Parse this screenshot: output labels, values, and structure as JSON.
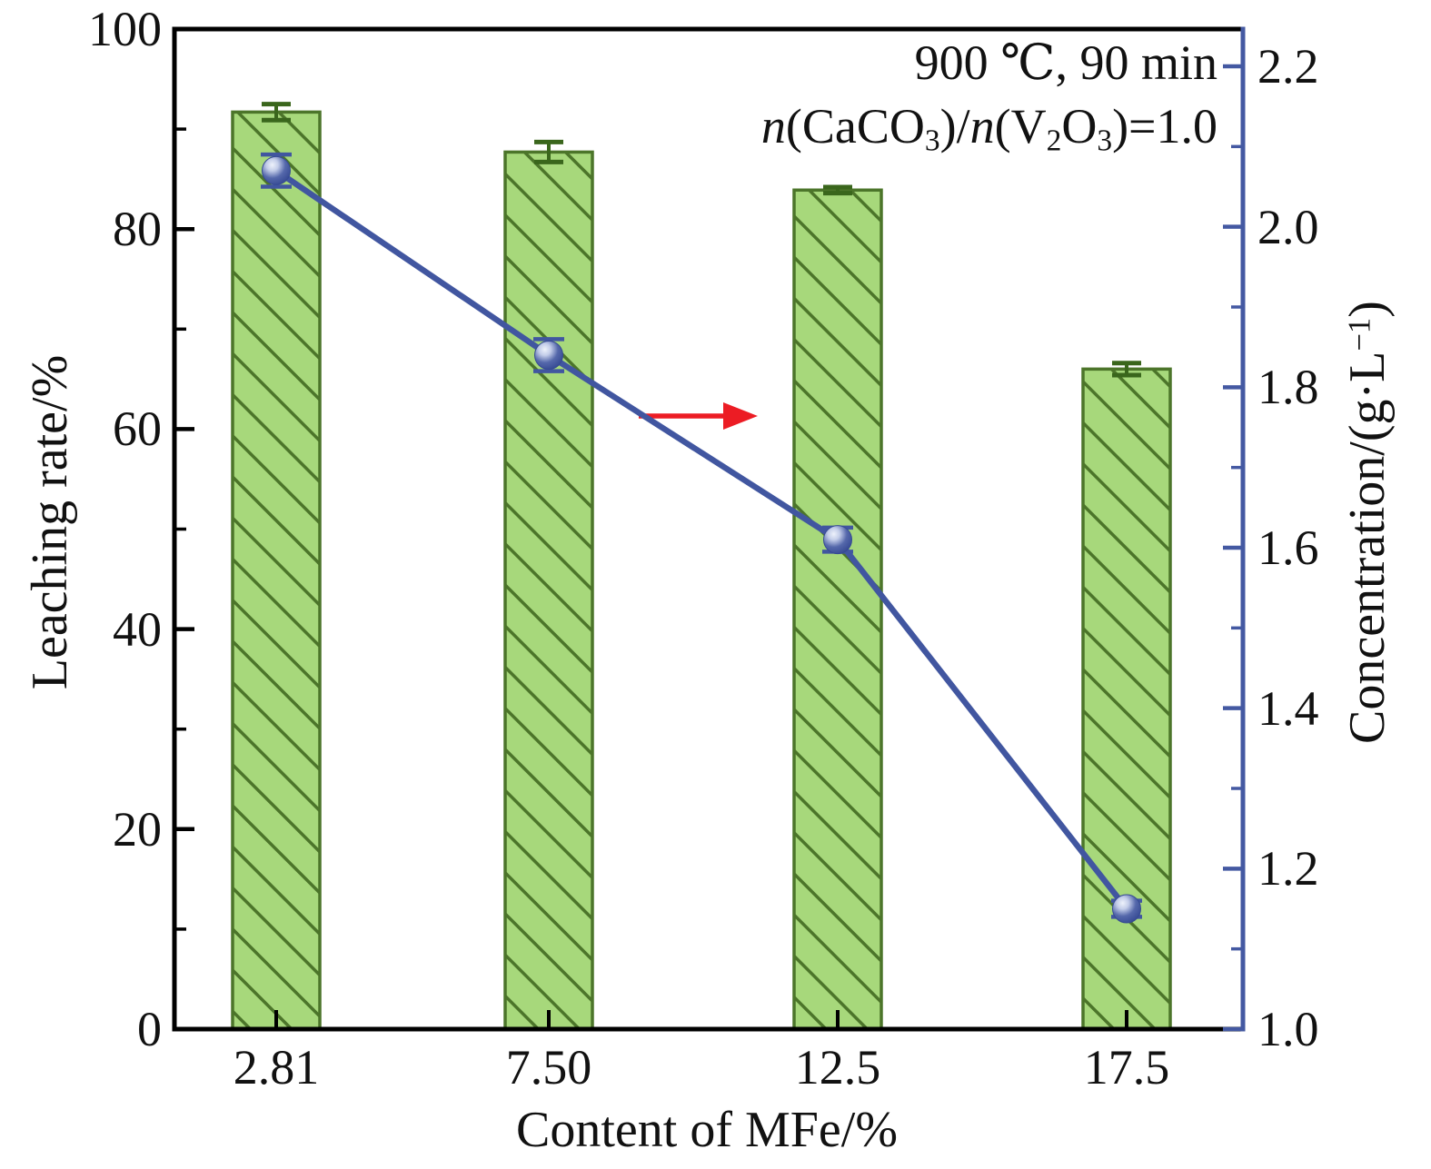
{
  "figure": {
    "annotation_line1": "900 ℃, 90 min",
    "annotation_line2_segments": [
      {
        "t": "n",
        "s": "i"
      },
      {
        "t": "(CaCO",
        "s": ""
      },
      {
        "t": "3",
        "s": "sub"
      },
      {
        "t": ")/",
        "s": ""
      },
      {
        "t": "n",
        "s": "i"
      },
      {
        "t": "(V",
        "s": ""
      },
      {
        "t": "2",
        "s": "sub"
      },
      {
        "t": "O",
        "s": ""
      },
      {
        "t": "3",
        "s": "sub"
      },
      {
        "t": ")=1.0",
        "s": ""
      }
    ],
    "xlabel": "Content of MFe/%",
    "ylabel_left": "Leaching rate/%",
    "ylabel_right_segments": [
      {
        "t": "Concentration/(g·L",
        "s": ""
      },
      {
        "t": "−1",
        "s": "sup"
      },
      {
        "t": ")",
        "s": ""
      }
    ]
  },
  "chart_data": {
    "type": "bar",
    "title": "",
    "xlabel": "Content of MFe/%",
    "ylabel_left": "Leaching rate/%",
    "ylabel_right": "Concentration/(g·L−1)",
    "categories": [
      "2.81",
      "7.50",
      "12.5",
      "17.5"
    ],
    "series": [
      {
        "name": "Leaching rate",
        "type": "bar",
        "axis": "left",
        "values": [
          91.7,
          87.7,
          83.9,
          66.0
        ],
        "errors": [
          0.8,
          1.0,
          0.3,
          0.6
        ]
      },
      {
        "name": "Concentration",
        "type": "line",
        "axis": "right",
        "values": [
          2.07,
          1.84,
          1.61,
          1.15
        ],
        "errors": [
          0.02,
          0.02,
          0.015,
          0.01
        ]
      }
    ],
    "ylim_left": [
      0,
      100
    ],
    "ylim_right": [
      1.0,
      2.2
    ],
    "yticks_left": [
      0,
      20,
      40,
      60,
      80,
      100
    ],
    "yticks_right": [
      1.0,
      1.2,
      1.4,
      1.6,
      1.8,
      2.0,
      2.2
    ],
    "grid": false,
    "legend": "none",
    "annotations": [
      "900 ℃, 90 min",
      "n(CaCO3)/n(V2O3)=1.0"
    ],
    "arrow_annotation": {
      "points_to": "right-axis",
      "color": "#ec1c24"
    },
    "colors": {
      "bar_fill": "#a7d87b",
      "bar_edge": "#4c752a",
      "bar_hatch": "#4c752a",
      "bar_error": "#3a661c",
      "line": "#4156a0",
      "marker_deep": "#364a93",
      "marker_mid": "#5568ab",
      "marker_light": "#eef2fb",
      "right_axis": "#4459a2",
      "left_axis": "#000000",
      "arrow": "#ec1c24",
      "text": "#111111"
    }
  }
}
